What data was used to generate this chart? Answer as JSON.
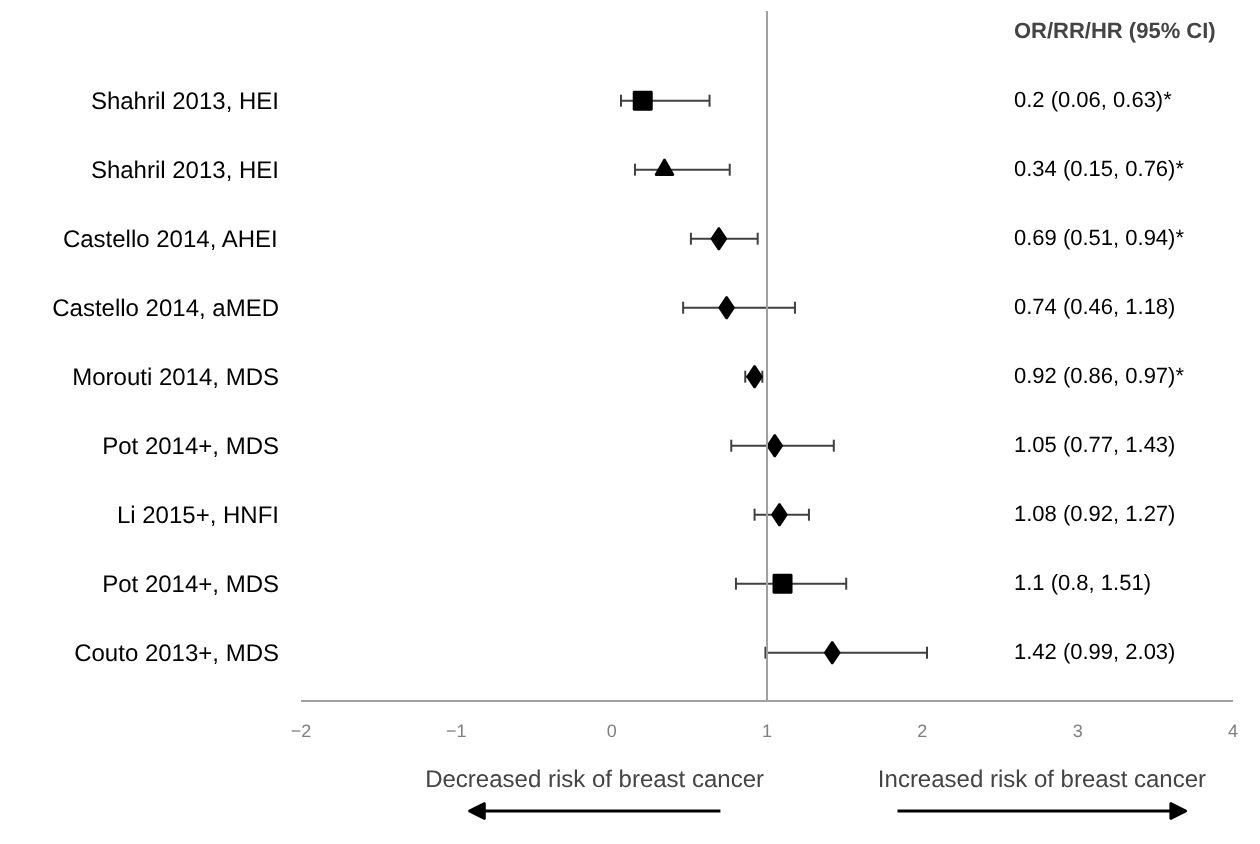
{
  "chart_data": {
    "type": "scatter",
    "orientation": "horizontal",
    "categories": [
      "Shahril 2013, HEI",
      "Shahril 2013, HEI",
      "Castello 2014, AHEI",
      "Castello 2014, aMED",
      "Morouti 2014, MDS",
      "Pot 2014+, MDS",
      "Li 2015+, HNFI",
      "Pot 2014+, MDS",
      "Couto 2013+, MDS"
    ],
    "series": [
      {
        "color": "#000000",
        "marker": "square",
        "values": [
          0.2,
          null,
          null,
          null,
          null,
          null,
          null,
          1.1,
          null
        ],
        "errors": [
          [
            0.06,
            0.63
          ],
          null,
          null,
          null,
          null,
          null,
          null,
          [
            0.8,
            1.51
          ],
          null
        ]
      },
      {
        "color": "#000000",
        "marker": "triangle",
        "values": [
          null,
          0.34,
          null,
          null,
          null,
          null,
          null,
          null,
          null
        ],
        "errors": [
          null,
          [
            0.15,
            0.76
          ],
          null,
          null,
          null,
          null,
          null,
          null,
          null
        ]
      },
      {
        "color": "#000000",
        "marker": "diamond",
        "values": [
          null,
          null,
          0.69,
          0.74,
          0.92,
          1.05,
          1.08,
          null,
          1.42
        ],
        "errors": [
          null,
          null,
          [
            0.51,
            0.94
          ],
          [
            0.46,
            1.18
          ],
          [
            0.86,
            0.97
          ],
          [
            0.77,
            1.43
          ],
          [
            0.92,
            1.27
          ],
          null,
          [
            0.99,
            2.03
          ]
        ]
      }
    ],
    "value_labels": [
      "0.2 (0.06, 0.63)*",
      "0.34 (0.15, 0.76)*",
      "0.69 (0.51, 0.94)*",
      "0.74 (0.46, 1.18)",
      "0.92 (0.86, 0.97)*",
      "1.05 (0.77, 1.43)",
      "1.08 (0.92, 1.27)",
      "1.1 (0.8, 1.51)",
      "1.42 (0.99, 2.03)"
    ],
    "xlim": [
      -2,
      4
    ],
    "xticks": [
      -2,
      -1,
      0,
      1,
      2,
      3,
      4
    ],
    "ref_lines": [
      {
        "axis": "x",
        "value": 1,
        "color": "#a0a0a0"
      }
    ],
    "annotations": [
      "OR/RR/HR (95% CI)",
      "Decreased risk of breast cancer",
      "Increased risk of breast cancer"
    ],
    "grid": false
  }
}
